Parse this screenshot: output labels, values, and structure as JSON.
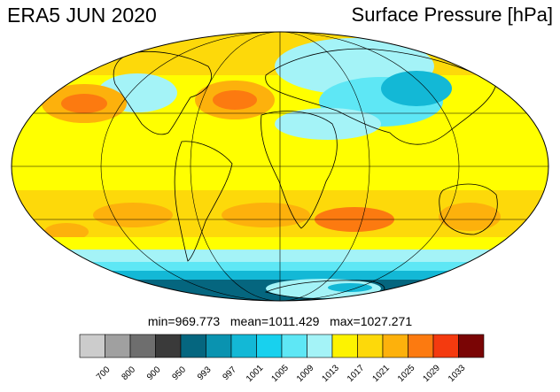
{
  "title": "ERA5 JUN 2020",
  "variable": "Surface Pressure [hPa]",
  "stats": {
    "min": "969.773",
    "mean": "1011.429",
    "max": "1027.271"
  },
  "stats_labels": {
    "min": "min=",
    "mean": "mean=",
    "max": "max="
  },
  "projection": "Mollweide",
  "colorbar": {
    "levels": [
      "700",
      "800",
      "900",
      "950",
      "993",
      "997",
      "1001",
      "1005",
      "1009",
      "1013",
      "1017",
      "1021",
      "1025",
      "1029",
      "1033"
    ],
    "colors": [
      "#cccccc",
      "#a0a0a0",
      "#6e6e6e",
      "#3a3a3a",
      "#05667f",
      "#0a93b0",
      "#13b8d6",
      "#18d1ee",
      "#5ee7f5",
      "#a4f3f7",
      "#fdf300",
      "#fdd90a",
      "#fdb10c",
      "#fc7a10",
      "#f43a0f",
      "#7a0505"
    ]
  },
  "palette": {
    "ocean_base": "#ffff00",
    "highs": "#fd9a12",
    "mid_high": "#fdd90a",
    "antarctic": "#0a93b0",
    "deep_low": "#05667f",
    "land_low": "#5ee7f5"
  }
}
